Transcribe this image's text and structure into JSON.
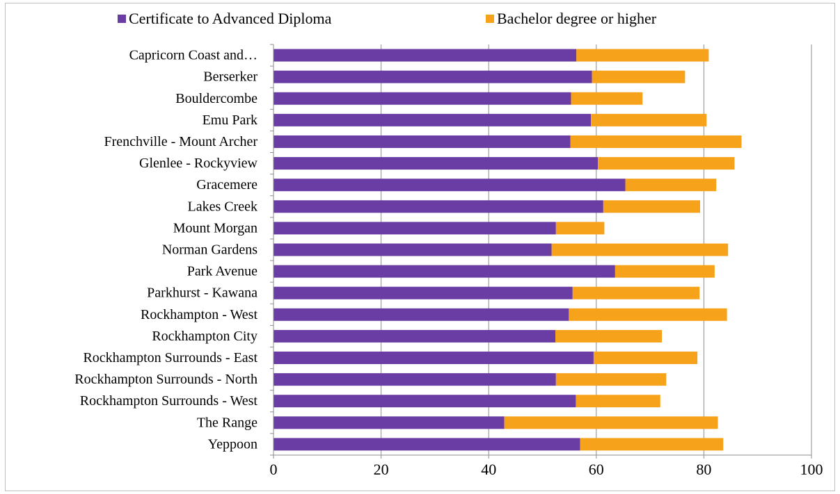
{
  "chart_data": {
    "type": "bar",
    "orientation": "horizontal",
    "stacked": true,
    "title": "",
    "xlabel": "",
    "ylabel": "",
    "xlim": [
      0,
      100
    ],
    "x_ticks": [
      0,
      20,
      40,
      60,
      80,
      100
    ],
    "grid": "vertical major gridlines",
    "legend_position": "top",
    "categories": [
      "Capricorn Coast and…",
      "Berserker",
      "Bouldercombe",
      "Emu Park",
      "Frenchville - Mount Archer",
      "Glenlee - Rockyview",
      "Gracemere",
      "Lakes Creek",
      "Mount Morgan",
      "Norman Gardens",
      "Park Avenue",
      "Parkhurst - Kawana",
      "Rockhampton - West",
      "Rockhampton City",
      "Rockhampton Surrounds - East",
      "Rockhampton Surrounds - North",
      "Rockhampton Surrounds - West",
      "The Range",
      "Yeppoon"
    ],
    "series": [
      {
        "name": "Certificate to Advanced Diploma",
        "color": "#6A3DA4",
        "values": [
          56.3,
          59.2,
          55.3,
          59.0,
          55.2,
          60.3,
          65.4,
          61.3,
          52.5,
          51.7,
          63.5,
          55.6,
          54.9,
          52.4,
          59.5,
          52.5,
          56.2,
          42.9,
          57.0
        ]
      },
      {
        "name": "Bachelor degree or higher",
        "color": "#F7A21B",
        "values": [
          24.6,
          17.3,
          13.3,
          21.5,
          31.8,
          25.4,
          16.9,
          18.0,
          9.0,
          32.8,
          18.5,
          23.6,
          29.4,
          19.8,
          19.3,
          20.5,
          15.7,
          39.7,
          26.6
        ]
      }
    ]
  }
}
